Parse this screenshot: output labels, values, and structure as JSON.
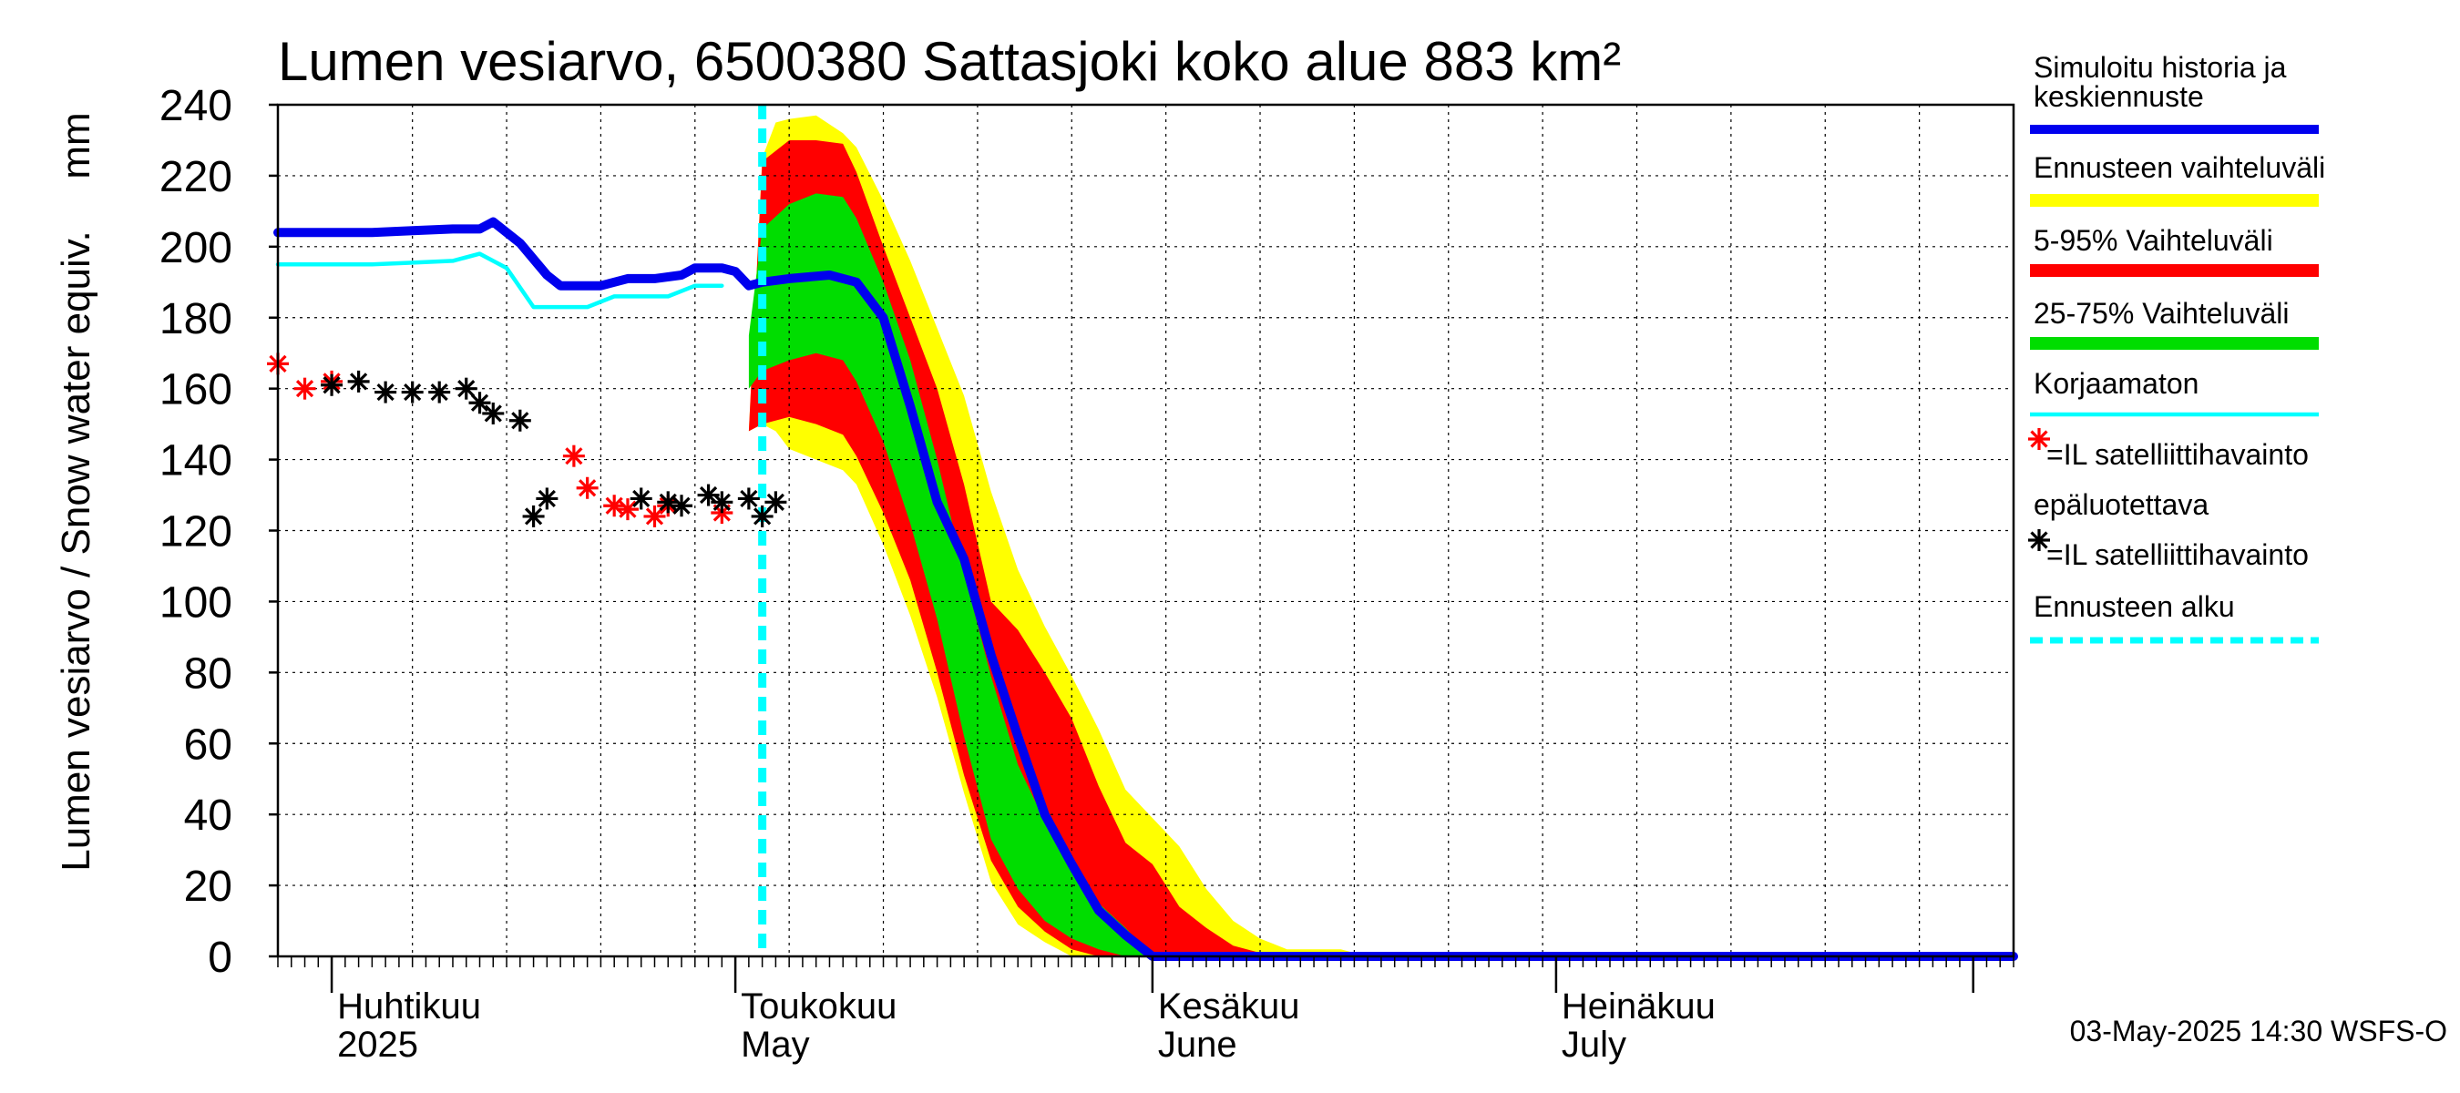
{
  "chart_data": {
    "type": "area",
    "title": "Lumen vesiarvo, 6500380 Sattasjoki koko alue 883 km²",
    "ylabel": "Lumen vesiarvo / Snow water equiv.",
    "yunit": "mm",
    "ylim": [
      0,
      240
    ],
    "yticks": [
      0,
      20,
      40,
      60,
      80,
      100,
      120,
      140,
      160,
      180,
      200,
      220,
      240
    ],
    "xlim": [
      "2025-03-28",
      "2025-08-04"
    ],
    "month_labels": [
      {
        "date": "2025-04-01",
        "fi": "Huhtikuu",
        "en": "2025"
      },
      {
        "date": "2025-05-01",
        "fi": "Toukokuu",
        "en": "May"
      },
      {
        "date": "2025-06-01",
        "fi": "Kesäkuu",
        "en": "June"
      },
      {
        "date": "2025-07-01",
        "fi": "Heinäkuu",
        "en": "July"
      }
    ],
    "grid": true,
    "legend_position": "right",
    "forecast_start": "2025-05-03",
    "series": [
      {
        "name": "Ennusteen vaihteluväli",
        "kind": "band",
        "color": "#ffff00",
        "x": [
          "2025-05-02",
          "2025-05-03",
          "2025-05-04",
          "2025-05-05",
          "2025-05-07",
          "2025-05-09",
          "2025-05-10",
          "2025-05-12",
          "2025-05-14",
          "2025-05-16",
          "2025-05-18",
          "2025-05-20",
          "2025-05-22",
          "2025-05-24",
          "2025-05-26",
          "2025-05-28",
          "2025-05-30",
          "2025-06-01",
          "2025-06-03",
          "2025-06-05",
          "2025-06-07",
          "2025-06-09",
          "2025-06-11",
          "2025-06-13",
          "2025-06-15",
          "2025-06-17",
          "2025-08-04"
        ],
        "hi": [
          148,
          225,
          235,
          236,
          237,
          232,
          228,
          213,
          196,
          177,
          158,
          131,
          109,
          93,
          79,
          64,
          47,
          39,
          31,
          19,
          10,
          5,
          2,
          2,
          2,
          0,
          0
        ],
        "lo": [
          148,
          150,
          148,
          143,
          140,
          137,
          133,
          116,
          96,
          73,
          46,
          21,
          9,
          4,
          0,
          0,
          0,
          0,
          0,
          0,
          0,
          0,
          0,
          0,
          0,
          0,
          0
        ]
      },
      {
        "name": "5-95% Vaihteluväli",
        "kind": "band",
        "color": "#ff0000",
        "x": [
          "2025-05-02",
          "2025-05-03",
          "2025-05-05",
          "2025-05-07",
          "2025-05-09",
          "2025-05-10",
          "2025-05-12",
          "2025-05-14",
          "2025-05-16",
          "2025-05-18",
          "2025-05-20",
          "2025-05-22",
          "2025-05-24",
          "2025-05-26",
          "2025-05-28",
          "2025-05-30",
          "2025-06-01",
          "2025-06-03",
          "2025-06-05",
          "2025-06-07",
          "2025-06-09",
          "2025-06-11",
          "2025-08-04"
        ],
        "hi": [
          148,
          224,
          230,
          230,
          229,
          221,
          200,
          180,
          160,
          133,
          100,
          92,
          80,
          67,
          48,
          32,
          26,
          14,
          8,
          3,
          1,
          0,
          0
        ],
        "lo": [
          148,
          150,
          152,
          150,
          147,
          141,
          125,
          106,
          80,
          51,
          27,
          14,
          7,
          2,
          0,
          0,
          0,
          0,
          0,
          0,
          0,
          0,
          0
        ]
      },
      {
        "name": "25-75% Vaihteluväli",
        "kind": "band",
        "color": "#00dd00",
        "x": [
          "2025-05-02",
          "2025-05-03",
          "2025-05-05",
          "2025-05-07",
          "2025-05-09",
          "2025-05-10",
          "2025-05-12",
          "2025-05-14",
          "2025-05-16",
          "2025-05-18",
          "2025-05-20",
          "2025-05-22",
          "2025-05-24",
          "2025-05-26",
          "2025-05-28",
          "2025-05-30",
          "2025-06-01",
          "2025-08-04"
        ],
        "hi": [
          175,
          205,
          212,
          215,
          214,
          208,
          190,
          168,
          140,
          108,
          79,
          54,
          38,
          27,
          15,
          8,
          0,
          0
        ],
        "lo": [
          160,
          165,
          168,
          170,
          168,
          162,
          145,
          122,
          95,
          62,
          33,
          19,
          10,
          5,
          2,
          0,
          0,
          0
        ]
      },
      {
        "name": "Korjaamaton",
        "kind": "line",
        "color": "#00ffff",
        "x": [
          "2025-03-28",
          "2025-04-01",
          "2025-04-04",
          "2025-04-07",
          "2025-04-10",
          "2025-04-12",
          "2025-04-14",
          "2025-04-16",
          "2025-04-18",
          "2025-04-20",
          "2025-04-22",
          "2025-04-24",
          "2025-04-26",
          "2025-04-28",
          "2025-04-30"
        ],
        "y": [
          195,
          195,
          195,
          195.5,
          196,
          198,
          194,
          183,
          183,
          183,
          186,
          186,
          186,
          189,
          189
        ]
      },
      {
        "name": "Simuloitu historia ja keskiennuste",
        "kind": "line",
        "color": "#0000ee",
        "x": [
          "2025-03-28",
          "2025-04-01",
          "2025-04-04",
          "2025-04-07",
          "2025-04-10",
          "2025-04-12",
          "2025-04-13",
          "2025-04-15",
          "2025-04-17",
          "2025-04-18",
          "2025-04-20",
          "2025-04-21",
          "2025-04-23",
          "2025-04-25",
          "2025-04-27",
          "2025-04-28",
          "2025-04-30",
          "2025-05-01",
          "2025-05-02",
          "2025-05-03",
          "2025-05-05",
          "2025-05-08",
          "2025-05-10",
          "2025-05-12",
          "2025-05-14",
          "2025-05-16",
          "2025-05-18",
          "2025-05-20",
          "2025-05-22",
          "2025-05-24",
          "2025-05-26",
          "2025-05-28",
          "2025-05-30",
          "2025-06-01",
          "2025-08-04"
        ],
        "y": [
          204,
          204,
          204,
          204.5,
          205,
          205,
          207,
          201,
          192,
          189,
          189,
          189,
          191,
          191,
          192,
          194,
          194,
          193,
          189,
          190,
          191,
          192,
          190,
          180,
          155,
          128,
          112,
          85,
          62,
          40,
          26,
          13,
          6,
          0,
          0
        ]
      }
    ],
    "observations": [
      {
        "name": "=IL satelliittihavainto",
        "note": "epäluotettava",
        "color": "#ff0000",
        "marker": "asterisk",
        "x": [
          "2025-03-28",
          "2025-03-30",
          "2025-04-01",
          "2025-04-19",
          "2025-04-20",
          "2025-04-22",
          "2025-04-23",
          "2025-04-25",
          "2025-04-26",
          "2025-04-30"
        ],
        "y": [
          167,
          160,
          162,
          141,
          132,
          127,
          126,
          124,
          127,
          125
        ]
      },
      {
        "name": "=IL satelliittihavainto",
        "color": "#000000",
        "marker": "asterisk",
        "x": [
          "2025-04-01",
          "2025-04-03",
          "2025-04-05",
          "2025-04-07",
          "2025-04-09",
          "2025-04-11",
          "2025-04-12",
          "2025-04-13",
          "2025-04-15",
          "2025-04-16",
          "2025-04-17",
          "2025-04-24",
          "2025-04-26",
          "2025-04-27",
          "2025-04-29",
          "2025-04-30",
          "2025-05-02",
          "2025-05-03",
          "2025-05-04"
        ],
        "y": [
          161,
          162,
          159,
          159,
          159,
          160,
          156,
          153,
          151,
          124,
          129,
          129,
          128,
          127,
          130,
          128,
          129,
          124,
          128
        ]
      }
    ],
    "legend": [
      {
        "label": "Simuloitu historia ja keskiennuste",
        "style": "line",
        "color": "#0000ee"
      },
      {
        "label": "Ennusteen vaihteluväli",
        "style": "thick",
        "color": "#ffff00"
      },
      {
        "label": "5-95% Vaihteluväli",
        "style": "thick",
        "color": "#ff0000"
      },
      {
        "label": "25-75% Vaihteluväli",
        "style": "thick",
        "color": "#00dd00"
      },
      {
        "label": "Korjaamaton",
        "style": "thin",
        "color": "#00ffff"
      },
      {
        "label": "=IL satelliittihavainto",
        "sub": "epäluotettava",
        "style": "asterisk",
        "color": "#ff0000"
      },
      {
        "label": "=IL satelliittihavainto",
        "style": "asterisk",
        "color": "#000000"
      },
      {
        "label": "Ennusteen alku",
        "style": "dashed",
        "color": "#00ffff"
      }
    ],
    "footer": "03-May-2025 14:30 WSFS-O"
  }
}
